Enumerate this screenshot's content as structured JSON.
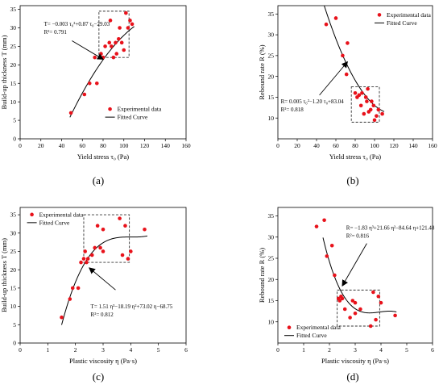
{
  "chart_data": [
    {
      "type": "scatter",
      "panel_label": "(a)",
      "xlabel": "Yield stress τ₀ (Pa)",
      "ylabel": "Build-up thickness T (mm)",
      "xlim": [
        0,
        160
      ],
      "ylim": [
        0,
        36
      ],
      "xticks": [
        "0",
        "20",
        "40",
        "60",
        "80",
        "100",
        "120",
        "140",
        "160"
      ],
      "yticks": [
        "0",
        "5",
        "10",
        "15",
        "20",
        "25",
        "30",
        "35"
      ],
      "xtick_values": [
        0,
        20,
        40,
        60,
        80,
        100,
        120,
        140,
        160
      ],
      "ytick_values": [
        0,
        5,
        10,
        15,
        20,
        25,
        30,
        35
      ],
      "legend": {
        "position": "bottom-right",
        "entries": [
          "Experimental data",
          "Fitted Curve"
        ]
      },
      "equation": "T= −0.003 τ₀²+0.87 τ₀−29.03",
      "r2": "R²= 0.791",
      "points": [
        [
          49,
          7
        ],
        [
          62,
          12
        ],
        [
          67,
          15
        ],
        [
          74,
          15
        ],
        [
          72,
          22
        ],
        [
          78,
          23
        ],
        [
          80,
          22
        ],
        [
          82,
          25
        ],
        [
          86,
          26
        ],
        [
          87,
          32
        ],
        [
          88,
          25
        ],
        [
          90,
          22
        ],
        [
          92,
          26
        ],
        [
          93,
          23
        ],
        [
          95,
          27
        ],
        [
          96,
          30
        ],
        [
          98,
          26
        ],
        [
          100,
          24
        ],
        [
          102,
          34
        ],
        [
          104,
          30
        ],
        [
          106,
          32
        ],
        [
          108,
          31
        ]
      ],
      "fit_coeffs": [
        -29.03,
        0.87,
        -0.003
      ],
      "fit_range": [
        48,
        110
      ],
      "highlight_box": [
        [
          76,
          22
        ],
        [
          105,
          34.5
        ]
      ],
      "arrow": {
        "from": [
          50,
          26.5
        ],
        "to": [
          80,
          21.5
        ]
      }
    },
    {
      "type": "scatter",
      "panel_label": "(b)",
      "xlabel": "Yield stress τ₀ (Pa)",
      "ylabel": "Rebound rate R (%)",
      "xlim": [
        0,
        160
      ],
      "ylim": [
        5,
        37
      ],
      "xticks": [
        "0",
        "20",
        "40",
        "60",
        "80",
        "100",
        "120",
        "140",
        "160"
      ],
      "yticks": [
        "10",
        "15",
        "20",
        "25",
        "30",
        "35"
      ],
      "xtick_values": [
        0,
        20,
        40,
        60,
        80,
        100,
        120,
        140,
        160
      ],
      "ytick_values": [
        10,
        15,
        20,
        25,
        30,
        35
      ],
      "legend": {
        "position": "top-right",
        "entries": [
          "Experimental data",
          "Fitted Curve"
        ]
      },
      "equation": "R= 0.005 τ₀²−1.20 τ₀+83.04",
      "r2": "R²= 0.818",
      "points": [
        [
          50,
          32.5
        ],
        [
          60,
          34
        ],
        [
          67,
          25
        ],
        [
          71,
          20.5
        ],
        [
          72,
          28
        ],
        [
          80,
          16
        ],
        [
          82,
          15
        ],
        [
          84,
          15.5
        ],
        [
          86,
          13
        ],
        [
          87,
          16
        ],
        [
          89,
          11
        ],
        [
          91,
          15
        ],
        [
          92,
          14
        ],
        [
          93,
          17
        ],
        [
          94,
          11.5
        ],
        [
          96,
          12
        ],
        [
          97,
          14
        ],
        [
          99,
          13
        ],
        [
          100,
          9.5
        ],
        [
          102,
          10.5
        ],
        [
          104,
          12
        ],
        [
          108,
          11
        ]
      ],
      "fit_coeffs": [
        83.04,
        -1.2,
        0.005
      ],
      "fit_range": [
        48,
        110
      ],
      "highlight_box": [
        [
          76,
          9
        ],
        [
          105,
          17.5
        ]
      ],
      "arrow": {
        "from": [
          43,
          15.5
        ],
        "to": [
          72,
          23.5
        ]
      }
    },
    {
      "type": "scatter",
      "panel_label": "(c)",
      "xlabel": "Plastic viscosity η (Pa·s)",
      "ylabel": "Build-up thickness T (mm)",
      "xlim": [
        0,
        6
      ],
      "ylim": [
        0,
        37
      ],
      "xticks": [
        "0",
        "1",
        "2",
        "3",
        "4",
        "5",
        "6"
      ],
      "yticks": [
        "0",
        "5",
        "10",
        "15",
        "20",
        "25",
        "30",
        "35"
      ],
      "xtick_values": [
        0,
        1,
        2,
        3,
        4,
        5,
        6
      ],
      "ytick_values": [
        0,
        5,
        10,
        15,
        20,
        25,
        30,
        35
      ],
      "legend": {
        "position": "top-left",
        "entries": [
          "Experimental data",
          "Fitted Curve"
        ]
      },
      "equation": "T= 1.51 η³−18.19 η²+73.02 η−68.75",
      "r2": "R²= 0.812",
      "points": [
        [
          1.5,
          7
        ],
        [
          1.8,
          12
        ],
        [
          1.9,
          15
        ],
        [
          2.1,
          15
        ],
        [
          2.2,
          22
        ],
        [
          2.3,
          23
        ],
        [
          2.35,
          25
        ],
        [
          2.4,
          22
        ],
        [
          2.45,
          23
        ],
        [
          2.6,
          24
        ],
        [
          2.7,
          26
        ],
        [
          2.8,
          32
        ],
        [
          2.9,
          26
        ],
        [
          3.0,
          31
        ],
        [
          3.0,
          25
        ],
        [
          3.6,
          34
        ],
        [
          3.7,
          24
        ],
        [
          3.8,
          32
        ],
        [
          3.9,
          23
        ],
        [
          4.0,
          25
        ],
        [
          4.5,
          31
        ]
      ],
      "fit_coeffs": [
        -68.75,
        73.02,
        -18.19,
        1.51
      ],
      "fit_range": [
        1.5,
        4.6
      ],
      "highlight_box": [
        [
          2.3,
          22
        ],
        [
          3.95,
          35
        ]
      ],
      "arrow": {
        "from": [
          3.45,
          14.5
        ],
        "to": [
          2.5,
          20.5
        ]
      }
    },
    {
      "type": "scatter",
      "panel_label": "(d)",
      "xlabel": "Plastic viscosity η (Pa·s)",
      "ylabel": "Rebound rate R (%)",
      "xlim": [
        0,
        6
      ],
      "ylim": [
        5,
        37
      ],
      "xticks": [
        "0",
        "1",
        "2",
        "3",
        "4",
        "5",
        "6"
      ],
      "yticks": [
        "10",
        "15",
        "20",
        "25",
        "30",
        "35"
      ],
      "xtick_values": [
        0,
        1,
        2,
        3,
        4,
        5,
        6
      ],
      "ytick_values": [
        10,
        15,
        20,
        25,
        30,
        35
      ],
      "legend": {
        "position": "bottom-left",
        "entries": [
          "Experimental data",
          "Fitted Curve"
        ]
      },
      "equation": "R= −1.83 η³+21.66 η²−84.64 η+121.48",
      "r2": "R²= 0.816",
      "points": [
        [
          1.5,
          32.5
        ],
        [
          1.8,
          34
        ],
        [
          1.9,
          25.5
        ],
        [
          2.1,
          28
        ],
        [
          2.2,
          21
        ],
        [
          2.35,
          15.5
        ],
        [
          2.4,
          15
        ],
        [
          2.45,
          16
        ],
        [
          2.5,
          15.5
        ],
        [
          2.6,
          13
        ],
        [
          2.8,
          11
        ],
        [
          2.9,
          15
        ],
        [
          3.0,
          12
        ],
        [
          3.0,
          14.5
        ],
        [
          3.2,
          13
        ],
        [
          3.6,
          9
        ],
        [
          3.7,
          17
        ],
        [
          3.8,
          10.5
        ],
        [
          3.9,
          16
        ],
        [
          4.0,
          14.5
        ],
        [
          4.55,
          11.5
        ]
      ],
      "fit_coeffs": [
        121.48,
        -84.64,
        21.66,
        -1.83
      ],
      "fit_range": [
        1.75,
        4.6
      ],
      "highlight_box": [
        [
          2.3,
          9
        ],
        [
          3.95,
          17.5
        ]
      ],
      "arrow": {
        "from": [
          3.45,
          28.5
        ],
        "to": [
          2.5,
          18.5
        ]
      }
    }
  ]
}
